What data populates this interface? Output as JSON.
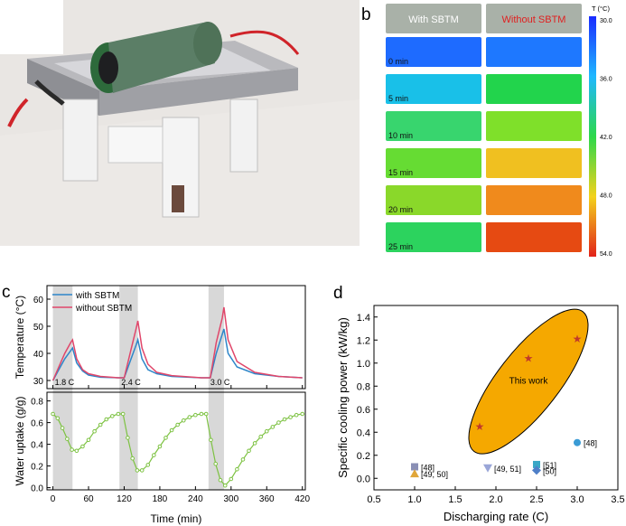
{
  "panels": {
    "a": "",
    "b": "b",
    "c": "c",
    "d": "d"
  },
  "thermal": {
    "headers": [
      "With SBTM",
      "Without SBTM"
    ],
    "colorbar_title": "T (°C)",
    "colorbar_ticks": [
      "30.0",
      "36.0",
      "42.0",
      "48.0",
      "54.0"
    ],
    "rows": [
      {
        "label": "0 min",
        "with": "#1e6bff",
        "without": "#1e78ff"
      },
      {
        "label": "5 min",
        "with": "#19c0e8",
        "without": "#22d44c"
      },
      {
        "label": "10 min",
        "with": "#38d56e",
        "without": "#7fe02a"
      },
      {
        "label": "15 min",
        "with": "#66dc33",
        "without": "#f0c020"
      },
      {
        "label": "20 min",
        "with": "#8ad82a",
        "without": "#f08a1c"
      },
      {
        "label": "25 min",
        "with": "#2cd35e",
        "without": "#e64a12"
      }
    ]
  },
  "chart_data": [
    {
      "type": "line",
      "panel": "c",
      "xlabel": "Time (min)",
      "xlim": [
        -10,
        425
      ],
      "xticks": [
        0,
        60,
        120,
        180,
        240,
        300,
        360,
        420
      ],
      "top": {
        "ylabel": "Temperature (°C)",
        "ylim": [
          27,
          65
        ],
        "yticks": [
          30,
          40,
          50,
          60
        ],
        "legend": "top-left",
        "series": [
          {
            "name": "with SBTM",
            "color": "#2e86c9",
            "x": [
              0,
              10,
              20,
              30,
              33,
              40,
              50,
              60,
              80,
              110,
              120,
              130,
              140,
              143,
              150,
              160,
              175,
              200,
              250,
              265,
              275,
              285,
              288,
              295,
              310,
              340,
              380,
              420
            ],
            "y": [
              30,
              34,
              38,
              41,
              42,
              36.5,
              33.5,
              32,
              31.2,
              31,
              31,
              37,
              43,
              45,
              38,
              34,
              32.5,
              31.5,
              31,
              31,
              40,
              47,
              49,
              40,
              35,
              32.5,
              31.5,
              31
            ]
          },
          {
            "name": "without SBTM",
            "color": "#e0466a",
            "x": [
              0,
              10,
              20,
              30,
              33,
              40,
              50,
              60,
              80,
              110,
              120,
              130,
              140,
              143,
              150,
              160,
              175,
              200,
              250,
              265,
              275,
              285,
              288,
              295,
              310,
              340,
              380,
              420
            ],
            "y": [
              30,
              35,
              40,
              44,
              45,
              38,
              34,
              32.5,
              31.5,
              31,
              31,
              40,
              49,
              52,
              42,
              36,
              33,
              31.8,
              31,
              31,
              44,
              53,
              57,
              45,
              37,
              33,
              31.5,
              31
            ]
          }
        ],
        "annotations": [
          "1.8 C",
          "2.4 C",
          "3.0 C"
        ]
      },
      "bottom": {
        "ylabel": "Water uptake (g/g)",
        "ylim": [
          -0.02,
          0.88
        ],
        "yticks": [
          0.0,
          0.2,
          0.4,
          0.6,
          0.8
        ],
        "series": [
          {
            "name": "",
            "color": "#7dc242",
            "x": [
              0,
              8,
              16,
              24,
              32,
              40,
              50,
              60,
              70,
              80,
              90,
              100,
              110,
              118,
              126,
              134,
              142,
              150,
              160,
              170,
              180,
              190,
              200,
              210,
              220,
              230,
              240,
              250,
              258,
              266,
              274,
              282,
              290,
              300,
              310,
              320,
              330,
              340,
              350,
              360,
              370,
              380,
              390,
              400,
              410,
              420
            ],
            "y": [
              0.68,
              0.64,
              0.55,
              0.45,
              0.35,
              0.34,
              0.38,
              0.44,
              0.52,
              0.58,
              0.63,
              0.66,
              0.68,
              0.68,
              0.46,
              0.27,
              0.16,
              0.16,
              0.21,
              0.3,
              0.38,
              0.46,
              0.53,
              0.58,
              0.62,
              0.65,
              0.67,
              0.68,
              0.68,
              0.44,
              0.22,
              0.07,
              0.02,
              0.08,
              0.17,
              0.26,
              0.34,
              0.41,
              0.47,
              0.52,
              0.56,
              0.6,
              0.63,
              0.65,
              0.67,
              0.68
            ]
          }
        ]
      },
      "shaded_x_ranges": [
        [
          0,
          33
        ],
        [
          112,
          143
        ],
        [
          262,
          288
        ]
      ]
    },
    {
      "type": "scatter",
      "panel": "d",
      "xlabel": "Discharging rate (C)",
      "ylabel": "Specific cooling power (kW/kg)",
      "xlim": [
        0.5,
        3.5
      ],
      "ylim": [
        -0.1,
        1.5
      ],
      "xticks": [
        0.5,
        1.0,
        1.5,
        2.0,
        2.5,
        3.0,
        3.5
      ],
      "yticks": [
        0.0,
        0.2,
        0.4,
        0.6,
        0.8,
        1.0,
        1.2,
        1.4
      ],
      "this_work": {
        "label": "This work",
        "color": "#f5a800",
        "x": [
          1.8,
          2.4,
          3.0
        ],
        "y": [
          0.45,
          1.04,
          1.21
        ]
      },
      "references": [
        {
          "label": "[48]",
          "x": 1.0,
          "y": 0.1,
          "color": "#8a8fb5",
          "marker": "square"
        },
        {
          "label": "[49, 50]",
          "x": 1.0,
          "y": 0.04,
          "color": "#e0a63a",
          "marker": "triangle"
        },
        {
          "label": "[49, 51]",
          "x": 1.9,
          "y": 0.09,
          "color": "#9aa6d8",
          "marker": "triangle-down"
        },
        {
          "label": "[51]",
          "x": 2.5,
          "y": 0.12,
          "color": "#3aa7c6",
          "marker": "square"
        },
        {
          "label": "[50]",
          "x": 2.5,
          "y": 0.07,
          "color": "#4f7fc8",
          "marker": "diamond"
        },
        {
          "label": "[48]",
          "x": 3.0,
          "y": 0.31,
          "color": "#3a9bd5",
          "marker": "circle"
        }
      ]
    }
  ]
}
